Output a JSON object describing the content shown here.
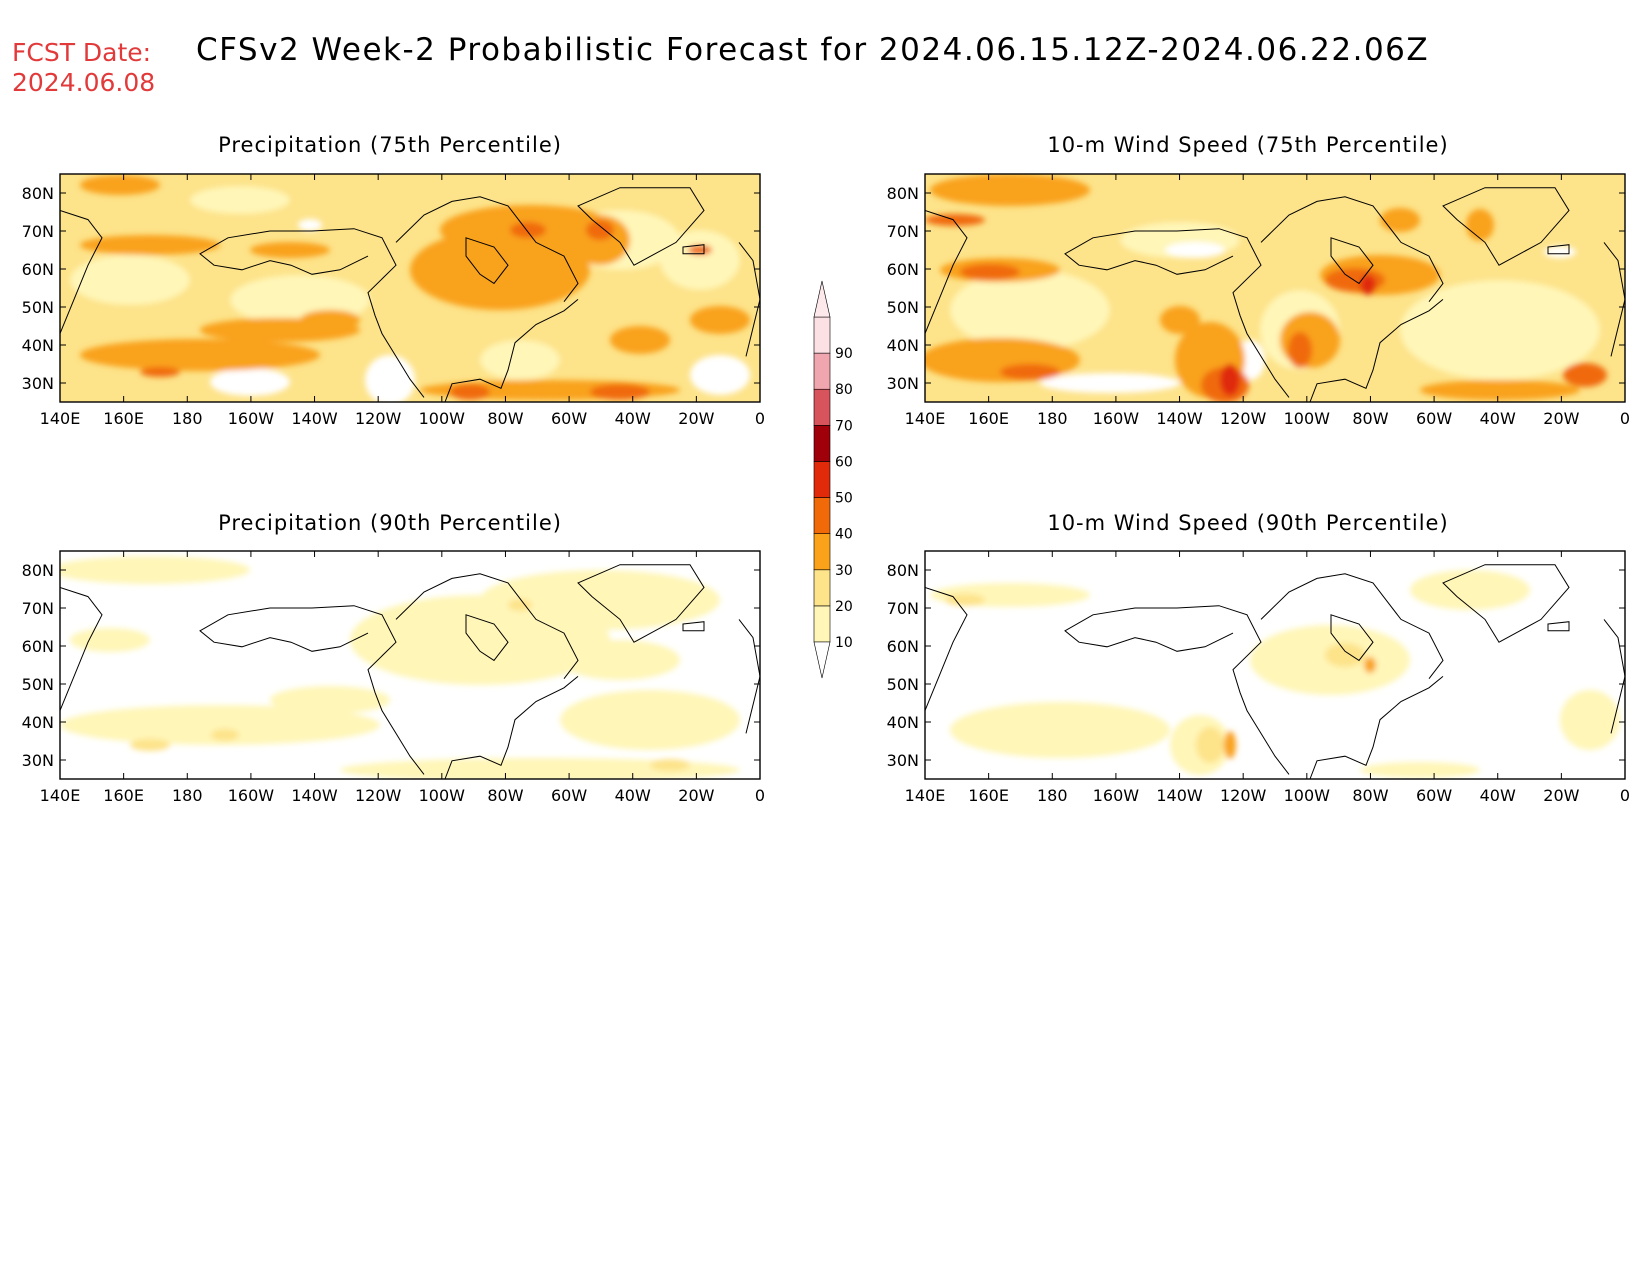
{
  "header": {
    "fcst_label": "FCST Date:",
    "fcst_date": "2024.06.08",
    "title": "CFSv2 Week-2 Probabilistic Forecast for 2024.06.15.12Z-2024.06.22.06Z"
  },
  "panels": [
    {
      "title": "Precipitation (75th Percentile)"
    },
    {
      "title": "10-m Wind Speed (75th Percentile)"
    },
    {
      "title": "Precipitation (90th Percentile)"
    },
    {
      "title": "10-m Wind Speed (90th Percentile)"
    }
  ],
  "axes": {
    "lat_labels": [
      "80N",
      "70N",
      "60N",
      "50N",
      "40N",
      "30N"
    ],
    "lon_labels": [
      "140E",
      "160E",
      "180",
      "160W",
      "140W",
      "120W",
      "100W",
      "80W",
      "60W",
      "40W",
      "20W",
      "0"
    ]
  },
  "colorbar": {
    "levels": [
      "10",
      "20",
      "30",
      "40",
      "50",
      "60",
      "70",
      "80",
      "90"
    ],
    "colors": [
      "#fff6b8",
      "#fde38a",
      "#f9a21a",
      "#f06a0a",
      "#e02a0a",
      "#a0000a",
      "#d8545c",
      "#f0a6ae",
      "#fbe0e4"
    ]
  }
}
